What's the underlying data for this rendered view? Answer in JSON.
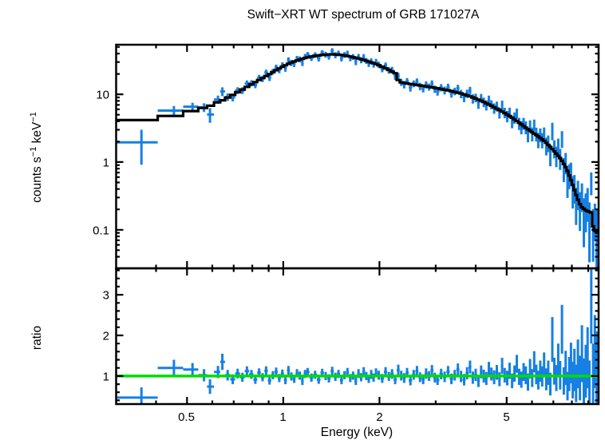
{
  "figure": {
    "background": "#ffffff"
  },
  "chart_data": {
    "type": "scatter",
    "title": "Swift−XRT WT spectrum of GRB 171027A",
    "xlabel": "Energy (keV)",
    "x_scale": "log",
    "xlim": [
      0.3,
      9.7
    ],
    "x_major_ticks": [
      0.5,
      1,
      2,
      5
    ],
    "x_major_labels": [
      "0.5",
      "1",
      "2",
      "5"
    ],
    "x_minor_ticks": [
      0.4,
      0.6,
      0.7,
      0.8,
      0.9,
      3,
      4,
      6,
      7,
      8,
      9
    ],
    "colors": {
      "data": "#1680e4",
      "model": "#000000",
      "reference": "#00dd00",
      "frame": "#000000"
    },
    "panels": [
      {
        "name": "spectrum",
        "ylabel": "counts s⁻¹ keV⁻¹",
        "ylabel_parts": {
          "pre": "counts s",
          "sup1": "−1",
          "mid": " keV",
          "sup2": "−1"
        },
        "y_scale": "log",
        "ylim": [
          0.027,
          54
        ],
        "y_major_ticks": [
          10,
          1,
          0.1
        ],
        "y_major_labels": [
          "10",
          "1",
          "0.1"
        ],
        "y_minor_ticks": [
          0.04,
          0.05,
          0.06,
          0.07,
          0.08,
          0.09,
          0.2,
          0.3,
          0.4,
          0.5,
          0.6,
          0.7,
          0.8,
          0.9,
          2,
          3,
          4,
          5,
          6,
          7,
          8,
          9,
          20,
          30,
          40,
          50
        ],
        "model_curve_format": [
          "energy_keV",
          "counts_per_s_per_keV"
        ],
        "model_curve": [
          [
            0.3,
            3.8
          ],
          [
            0.44,
            4.6
          ],
          [
            0.5,
            5.4
          ],
          [
            0.56,
            6.2
          ],
          [
            0.6,
            7.0
          ],
          [
            0.65,
            8.3
          ],
          [
            0.7,
            10.0
          ],
          [
            0.75,
            12.0
          ],
          [
            0.8,
            14.3
          ],
          [
            0.85,
            16.8
          ],
          [
            0.9,
            19.5
          ],
          [
            0.95,
            22.7
          ],
          [
            1.0,
            26.0
          ],
          [
            1.06,
            29.5
          ],
          [
            1.12,
            32.3
          ],
          [
            1.18,
            34.8
          ],
          [
            1.25,
            36.8
          ],
          [
            1.33,
            38.3
          ],
          [
            1.42,
            39.0
          ],
          [
            1.52,
            38.2
          ],
          [
            1.62,
            36.2
          ],
          [
            1.73,
            33.6
          ],
          [
            1.84,
            30.8
          ],
          [
            1.95,
            28.0
          ],
          [
            2.06,
            25.0
          ],
          [
            2.16,
            22.5
          ],
          [
            2.26,
            20.0
          ],
          [
            2.3,
            15.2
          ],
          [
            2.5,
            14.2
          ],
          [
            2.75,
            13.3
          ],
          [
            3.0,
            12.4
          ],
          [
            3.3,
            11.4
          ],
          [
            3.6,
            10.3
          ],
          [
            3.9,
            9.1
          ],
          [
            4.2,
            7.9
          ],
          [
            4.5,
            6.7
          ],
          [
            4.8,
            5.7
          ],
          [
            5.1,
            4.8
          ],
          [
            5.4,
            4.0
          ],
          [
            5.8,
            3.1
          ],
          [
            6.2,
            2.5
          ],
          [
            6.6,
            2.0
          ],
          [
            7.0,
            1.5
          ],
          [
            7.4,
            1.1
          ],
          [
            7.7,
            0.8
          ],
          [
            8.0,
            0.5
          ],
          [
            8.3,
            0.3
          ],
          [
            8.55,
            0.22
          ],
          [
            8.9,
            0.19
          ],
          [
            9.2,
            0.18
          ],
          [
            9.35,
            0.1
          ],
          [
            9.7,
            0.09
          ]
        ]
      },
      {
        "name": "ratio",
        "ylabel": "ratio",
        "y_scale": "linear",
        "ylim": [
          0.31,
          3.65
        ],
        "y_major_ticks": [
          1,
          2,
          3
        ],
        "y_major_labels": [
          "1",
          "2",
          "3"
        ],
        "y_minor_ticks": [
          0.4,
          0.6,
          0.8,
          1.2,
          1.4,
          1.6,
          1.8,
          2.2,
          2.4,
          2.6,
          2.8,
          3.2,
          3.4,
          3.6
        ],
        "reference_line": {
          "value": 1
        }
      }
    ],
    "points_format": [
      "energy_keV",
      "ratio_data_over_model",
      "ratio_error"
    ],
    "points": [
      [
        0.36,
        0.47,
        0.25
      ],
      [
        0.455,
        1.2,
        0.2
      ],
      [
        0.52,
        1.16,
        0.16
      ],
      [
        0.565,
        1.02,
        0.15
      ],
      [
        0.59,
        0.74,
        0.18
      ],
      [
        0.625,
        1.1,
        0.15
      ],
      [
        0.645,
        1.35,
        0.2
      ],
      [
        0.67,
        1.02,
        0.13
      ],
      [
        0.695,
        0.92,
        0.12
      ],
      [
        0.72,
        1.06,
        0.12
      ],
      [
        0.745,
        0.97,
        0.11
      ],
      [
        0.77,
        1.12,
        0.12
      ],
      [
        0.795,
        1.04,
        0.11
      ],
      [
        0.818,
        0.91,
        0.1
      ],
      [
        0.84,
        1.08,
        0.11
      ],
      [
        0.862,
        0.97,
        0.1
      ],
      [
        0.884,
        1.13,
        0.11
      ],
      [
        0.906,
        0.89,
        0.1
      ],
      [
        0.928,
        1.02,
        0.1
      ],
      [
        0.95,
        1.1,
        0.11
      ],
      [
        0.972,
        0.95,
        0.1
      ],
      [
        0.994,
        1.06,
        0.1
      ],
      [
        1.016,
        0.9,
        0.1
      ],
      [
        1.038,
        1.14,
        0.11
      ],
      [
        1.06,
        0.99,
        0.1
      ],
      [
        1.082,
        0.93,
        0.1
      ],
      [
        1.104,
        1.07,
        0.1
      ],
      [
        1.126,
        1.01,
        0.1
      ],
      [
        1.148,
        0.88,
        0.1
      ],
      [
        1.17,
        1.05,
        0.1
      ],
      [
        1.192,
        1.1,
        0.1
      ],
      [
        1.225,
        0.96,
        0.1
      ],
      [
        1.258,
        1.03,
        0.1
      ],
      [
        1.291,
        0.91,
        0.1
      ],
      [
        1.324,
        1.08,
        0.1
      ],
      [
        1.357,
        1.0,
        0.1
      ],
      [
        1.39,
        0.94,
        0.1
      ],
      [
        1.423,
        1.12,
        0.11
      ],
      [
        1.456,
        0.98,
        0.1
      ],
      [
        1.489,
        1.05,
        0.1
      ],
      [
        1.522,
        0.9,
        0.1
      ],
      [
        1.555,
        1.02,
        0.1
      ],
      [
        1.588,
        1.09,
        0.11
      ],
      [
        1.621,
        0.95,
        0.1
      ],
      [
        1.654,
        1.01,
        0.1
      ],
      [
        1.687,
        0.88,
        0.1
      ],
      [
        1.72,
        1.06,
        0.11
      ],
      [
        1.753,
        0.97,
        0.1
      ],
      [
        1.786,
        1.11,
        0.11
      ],
      [
        1.819,
        1.0,
        0.1
      ],
      [
        1.852,
        0.93,
        0.1
      ],
      [
        1.885,
        1.04,
        0.11
      ],
      [
        1.918,
        0.96,
        0.1
      ],
      [
        1.951,
        1.08,
        0.11
      ],
      [
        1.99,
        1.02,
        0.11
      ],
      [
        2.04,
        0.94,
        0.11
      ],
      [
        2.09,
        1.1,
        0.12
      ],
      [
        2.14,
        0.99,
        0.11
      ],
      [
        2.19,
        1.05,
        0.12
      ],
      [
        2.24,
        0.91,
        0.11
      ],
      [
        2.29,
        1.15,
        0.13
      ],
      [
        2.34,
        1.01,
        0.12
      ],
      [
        2.39,
        0.95,
        0.12
      ],
      [
        2.44,
        1.08,
        0.12
      ],
      [
        2.5,
        0.89,
        0.12
      ],
      [
        2.56,
        1.03,
        0.12
      ],
      [
        2.62,
        1.12,
        0.13
      ],
      [
        2.68,
        0.97,
        0.12
      ],
      [
        2.74,
        0.92,
        0.12
      ],
      [
        2.8,
        1.06,
        0.13
      ],
      [
        2.86,
        1.0,
        0.12
      ],
      [
        2.92,
        1.14,
        0.13
      ],
      [
        2.98,
        0.96,
        0.12
      ],
      [
        3.04,
        0.9,
        0.12
      ],
      [
        3.12,
        1.05,
        0.13
      ],
      [
        3.2,
        0.98,
        0.13
      ],
      [
        3.28,
        1.11,
        0.14
      ],
      [
        3.36,
        0.93,
        0.13
      ],
      [
        3.44,
        1.02,
        0.13
      ],
      [
        3.52,
        1.16,
        0.15
      ],
      [
        3.6,
        0.99,
        0.14
      ],
      [
        3.68,
        0.91,
        0.14
      ],
      [
        3.76,
        1.07,
        0.15
      ],
      [
        3.84,
        1.22,
        0.16
      ],
      [
        3.92,
        0.96,
        0.15
      ],
      [
        4.0,
        1.03,
        0.15
      ],
      [
        4.08,
        0.88,
        0.15
      ],
      [
        4.16,
        1.1,
        0.16
      ],
      [
        4.24,
        1.0,
        0.16
      ],
      [
        4.32,
        0.94,
        0.16
      ],
      [
        4.4,
        1.18,
        0.17
      ],
      [
        4.48,
        1.05,
        0.16
      ],
      [
        4.57,
        0.97,
        0.17
      ],
      [
        4.66,
        1.09,
        0.18
      ],
      [
        4.75,
        0.92,
        0.17
      ],
      [
        4.84,
        1.25,
        0.2
      ],
      [
        4.93,
        1.02,
        0.18
      ],
      [
        5.02,
        0.95,
        0.18
      ],
      [
        5.11,
        1.13,
        0.2
      ],
      [
        5.2,
        0.88,
        0.18
      ],
      [
        5.29,
        1.06,
        0.2
      ],
      [
        5.38,
        1.3,
        0.22
      ],
      [
        5.47,
        0.98,
        0.2
      ],
      [
        5.56,
        0.91,
        0.2
      ],
      [
        5.65,
        1.1,
        0.22
      ],
      [
        5.74,
        1.02,
        0.22
      ],
      [
        5.83,
        0.85,
        0.21
      ],
      [
        5.92,
        1.18,
        0.24
      ],
      [
        6.01,
        0.95,
        0.22
      ],
      [
        6.1,
        1.35,
        0.26
      ],
      [
        6.19,
        1.04,
        0.24
      ],
      [
        6.28,
        0.9,
        0.23
      ],
      [
        6.37,
        1.12,
        0.26
      ],
      [
        6.46,
        0.99,
        0.25
      ],
      [
        6.55,
        1.28,
        0.3
      ],
      [
        6.65,
        0.92,
        0.27
      ],
      [
        6.75,
        1.08,
        0.3
      ],
      [
        6.85,
        0.8,
        0.28
      ],
      [
        6.95,
        1.9,
        0.55
      ],
      [
        7.05,
        1.12,
        0.33
      ],
      [
        7.15,
        0.95,
        0.32
      ],
      [
        7.25,
        1.4,
        0.4
      ],
      [
        7.35,
        1.02,
        0.35
      ],
      [
        7.45,
        2.15,
        0.6
      ],
      [
        7.55,
        0.88,
        0.34
      ],
      [
        7.65,
        1.2,
        0.42
      ],
      [
        7.75,
        0.75,
        0.35
      ],
      [
        7.85,
        1.05,
        0.42
      ],
      [
        7.95,
        1.32,
        0.5
      ],
      [
        8.05,
        0.9,
        0.45
      ],
      [
        8.15,
        1.15,
        0.52
      ],
      [
        8.25,
        0.82,
        0.46
      ],
      [
        8.36,
        1.3,
        0.6
      ],
      [
        8.48,
        0.95,
        0.55
      ],
      [
        8.6,
        1.55,
        0.7
      ],
      [
        8.72,
        0.85,
        0.58
      ],
      [
        8.84,
        1.12,
        0.65
      ],
      [
        8.96,
        1.45,
        0.75
      ],
      [
        9.08,
        0.78,
        0.6
      ],
      [
        9.2,
        2.85,
        1.05
      ],
      [
        9.32,
        1.05,
        0.75
      ],
      [
        9.44,
        1.6,
        0.9
      ],
      [
        9.56,
        1.1,
        1.0
      ],
      [
        9.66,
        0.95,
        0.8
      ]
    ]
  }
}
